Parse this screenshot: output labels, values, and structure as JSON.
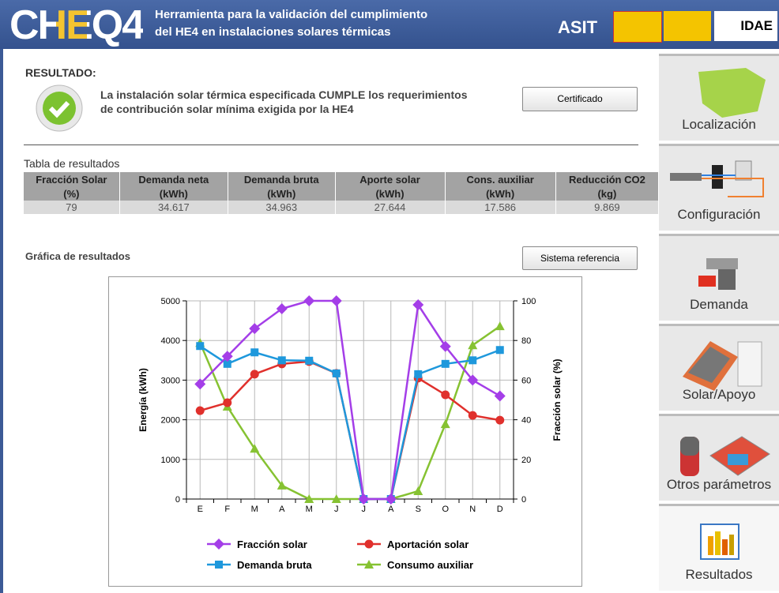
{
  "header": {
    "logo": "CHEQ4",
    "title_line1": "Herramienta para la validación del cumplimiento",
    "title_line2": "del HE4 en instalaciones solares térmicas",
    "partner1": "ASIT",
    "partner2": "IDAE"
  },
  "result": {
    "heading": "RESULTADO:",
    "message_line1": "La instalación solar térmica especificada CUMPLE los requerimientos",
    "message_line2": "de contribución solar mínima exigida por la HE4",
    "button": "Certificado"
  },
  "table": {
    "title": "Tabla de resultados",
    "header": [
      "Fracción Solar",
      "Demanda neta",
      "Demanda bruta",
      "Aporte solar",
      "Cons. auxiliar",
      "Reducción CO2"
    ],
    "units": [
      "(%)",
      "(kWh)",
      "(kWh)",
      "(kWh)",
      "(kWh)",
      "(kg)"
    ],
    "rows": [
      [
        "79",
        "34.617",
        "34.963",
        "27.644",
        "17.586",
        "9.869"
      ]
    ]
  },
  "chart_section": {
    "title": "Gráfica de resultados",
    "button": "Sistema referencia"
  },
  "chart_data": {
    "type": "line",
    "ylabel": "Energía (kWh)",
    "y2label": "Fracción solar (%)",
    "categories": [
      "E",
      "F",
      "M",
      "A",
      "M",
      "J",
      "J",
      "A",
      "S",
      "O",
      "N",
      "D"
    ],
    "ylim": [
      0,
      5000
    ],
    "yticks": [
      0,
      1000,
      2000,
      3000,
      4000,
      5000
    ],
    "y2lim": [
      0,
      100
    ],
    "y2ticks": [
      0,
      20,
      40,
      60,
      80,
      100
    ],
    "grid": true,
    "series": [
      {
        "name": "Fracción solar",
        "color": "#a43ee8",
        "marker": "diamond",
        "axis": "y2",
        "values": [
          58,
          72,
          86,
          96,
          100,
          100,
          0,
          0,
          98,
          77,
          60,
          52
        ]
      },
      {
        "name": "Aportación solar",
        "color": "#e0302c",
        "marker": "circle",
        "values": [
          2230,
          2430,
          3150,
          3410,
          3470,
          3170,
          0,
          0,
          3050,
          2630,
          2110,
          1990
        ]
      },
      {
        "name": "Demanda bruta",
        "color": "#1e98dc",
        "marker": "square",
        "values": [
          3860,
          3410,
          3700,
          3500,
          3490,
          3170,
          0,
          0,
          3150,
          3410,
          3500,
          3760
        ]
      },
      {
        "name": "Consumo auxiliar",
        "color": "#86c232",
        "marker": "triangle",
        "values": [
          3940,
          2330,
          1270,
          340,
          0,
          0,
          0,
          0,
          200,
          1890,
          3880,
          4360
        ]
      }
    ]
  },
  "sidebar": [
    "Localización",
    "Configuración",
    "Demanda",
    "Solar/Apoyo",
    "Otros parámetros",
    "Resultados"
  ]
}
